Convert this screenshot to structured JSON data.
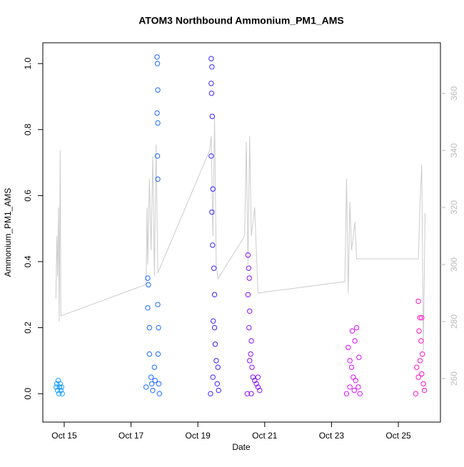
{
  "chart_data": {
    "type": "scatter",
    "title": "ATOM3 Northbound Ammonium_PM1_AMS",
    "x_label": "Date",
    "y_label": "Ammonium_PM1_AMS",
    "xlim": [
      14.36,
      26.26
    ],
    "xticks": [
      {
        "value": 15,
        "label": "Oct 15"
      },
      {
        "value": 17,
        "label": "Oct 17"
      },
      {
        "value": 19,
        "label": "Oct 19"
      },
      {
        "value": 21,
        "label": "Oct 21"
      },
      {
        "value": 23,
        "label": "Oct 23"
      },
      {
        "value": 25,
        "label": "Oct 25"
      }
    ],
    "ylim": [
      -0.086,
      1.063
    ],
    "yticks": [
      {
        "value": 0,
        "label": "0.0"
      },
      0.2,
      0.4,
      0.6,
      0.8,
      {
        "value": 1,
        "label": "1.0"
      }
    ],
    "y2lim": [
      244.75,
      377.75
    ],
    "y2ticks": [
      260,
      280,
      300,
      320,
      340,
      360
    ],
    "series": [
      {
        "type": "line",
        "axis": "y2",
        "color": "#cccccc",
        "x": [
          14.75,
          14.78,
          14.8,
          14.83,
          14.85,
          14.88,
          14.9,
          17.45,
          17.48,
          17.5,
          17.55,
          17.6,
          17.65,
          17.7,
          17.75,
          17.8,
          19.35,
          19.4,
          19.45,
          19.5,
          19.55,
          19.6,
          20.4,
          20.45,
          20.5,
          20.55,
          20.6,
          20.7,
          20.8,
          23.4,
          23.45,
          23.5,
          23.55,
          23.6,
          23.7,
          23.75,
          25.6,
          25.65,
          25.7,
          25.75,
          25.8
        ],
        "values": [
          288,
          310,
          296,
          320,
          280,
          340,
          282,
          293,
          320,
          300,
          330,
          305,
          338,
          296,
          342,
          297,
          340,
          345,
          310,
          352,
          300,
          295,
          310,
          343,
          300,
          345,
          310,
          320,
          290,
          294,
          330,
          290,
          322,
          305,
          315,
          302,
          302,
          322,
          335,
          270,
          318
        ]
      },
      {
        "type": "scatter",
        "color": "#1a9fff",
        "x": [
          14.76,
          14.78,
          14.8,
          14.82,
          14.84,
          14.86,
          14.88,
          14.9,
          14.92,
          14.94
        ],
        "values": [
          0.02,
          0.03,
          0.01,
          0.04,
          0.0,
          0.02,
          0.03,
          0.01,
          0.02,
          0.0
        ]
      },
      {
        "type": "scatter",
        "color": "#1a6aff",
        "x": [
          17.45,
          17.5,
          17.52,
          17.5,
          17.55,
          17.55,
          17.6,
          17.62,
          17.65,
          17.7,
          17.72,
          17.78,
          17.79,
          17.8,
          17.78,
          17.8,
          17.79,
          17.8,
          17.8,
          17.82,
          17.81,
          17.83,
          17.85
        ],
        "values": [
          0.02,
          0.35,
          0.33,
          0.26,
          0.2,
          0.12,
          0.05,
          0.03,
          0.01,
          0.08,
          0.04,
          1.02,
          1.0,
          0.92,
          0.85,
          0.82,
          0.72,
          0.65,
          0.27,
          0.2,
          0.12,
          0.03,
          0.0
        ]
      },
      {
        "type": "scatter",
        "color": "#3a22ff",
        "x": [
          19.4,
          19.42,
          19.4,
          19.41,
          19.43,
          19.4,
          19.45,
          19.42,
          19.44,
          19.48,
          19.5,
          19.46,
          19.52,
          19.55,
          19.6,
          19.58,
          19.38,
          19.62,
          19.5,
          19.45
        ],
        "values": [
          1.015,
          0.99,
          0.94,
          0.91,
          0.84,
          0.72,
          0.62,
          0.55,
          0.45,
          0.38,
          0.3,
          0.22,
          0.15,
          0.1,
          0.08,
          0.03,
          0.0,
          0.01,
          0.2,
          0.05
        ]
      },
      {
        "type": "scatter",
        "color": "#8a10ff",
        "x": [
          20.5,
          20.52,
          20.54,
          20.5,
          20.55,
          20.53,
          20.6,
          20.58,
          20.62,
          20.65,
          20.7,
          20.75,
          20.8,
          20.85,
          20.48,
          20.6,
          20.55,
          20.8
        ],
        "values": [
          0.42,
          0.38,
          0.35,
          0.3,
          0.25,
          0.2,
          0.16,
          0.12,
          0.08,
          0.05,
          0.04,
          0.03,
          0.02,
          0.01,
          0.0,
          0.0,
          0.1,
          0.05
        ]
      },
      {
        "type": "scatter",
        "color": "#dd10ff",
        "x": [
          23.45,
          23.5,
          23.55,
          23.6,
          23.62,
          23.65,
          23.7,
          23.75,
          23.72,
          23.8,
          23.82,
          23.85,
          23.55,
          23.68
        ],
        "values": [
          0.0,
          0.14,
          0.1,
          0.08,
          0.19,
          0.05,
          0.16,
          0.2,
          0.04,
          0.02,
          0.11,
          0.0,
          0.02,
          0.01
        ]
      },
      {
        "type": "scatter",
        "color": "#ff10cc",
        "x": [
          25.6,
          25.65,
          25.7,
          25.62,
          25.68,
          25.72,
          25.55,
          25.6,
          25.75,
          25.78,
          25.52,
          25.7,
          25.65
        ],
        "values": [
          0.28,
          0.23,
          0.23,
          0.19,
          0.16,
          0.12,
          0.08,
          0.05,
          0.03,
          0.01,
          0.0,
          0.06,
          0.1
        ]
      }
    ]
  }
}
